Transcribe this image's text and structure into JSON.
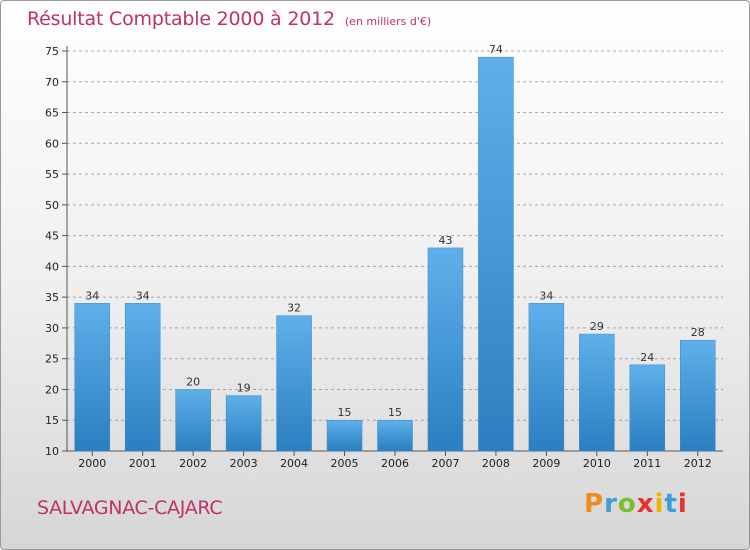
{
  "header": {
    "title": "Résultat Comptable 2000 à 2012",
    "subtitle": "(en milliers d'€)"
  },
  "footer": {
    "commune": "SALVAGNAC-CAJARC",
    "logo_text": "Proxiti"
  },
  "colors": {
    "title": "#c0306a",
    "bar_top": "#5fb0ea",
    "bar_bottom": "#2a7fc0",
    "grid": "#888888"
  },
  "chart_data": {
    "type": "bar",
    "title": "Résultat Comptable 2000 à 2012",
    "subtitle": "(en milliers d'€)",
    "categories": [
      "2000",
      "2001",
      "2002",
      "2003",
      "2004",
      "2005",
      "2006",
      "2007",
      "2008",
      "2009",
      "2010",
      "2011",
      "2012"
    ],
    "values": [
      34,
      34,
      20,
      19,
      32,
      15,
      15,
      43,
      74,
      34,
      29,
      24,
      28
    ],
    "xlabel": "",
    "ylabel": "",
    "ylim": [
      10,
      75
    ],
    "yticks": [
      10,
      15,
      20,
      25,
      30,
      35,
      40,
      45,
      50,
      55,
      60,
      65,
      70,
      75
    ],
    "grid": "horizontal dashed",
    "legend": "none"
  }
}
